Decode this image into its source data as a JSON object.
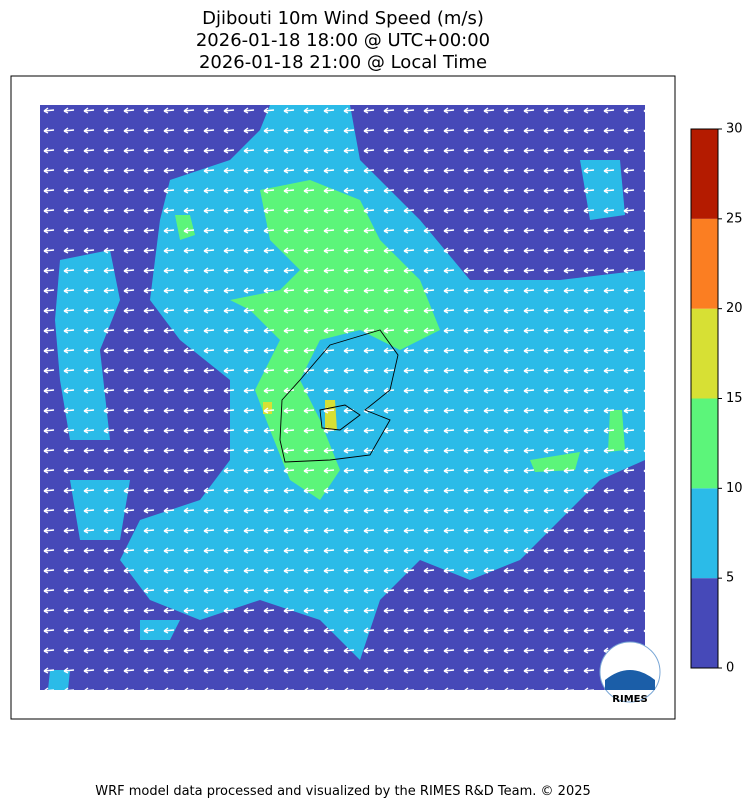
{
  "title": [
    "Djibouti 10m Wind Speed (m/s)",
    "2026-01-18 18:00 @ UTC+00:00",
    "2026-01-18 21:00 @ Local Time"
  ],
  "colorbar": {
    "lim": [
      0,
      30
    ],
    "ticks": [
      0,
      5,
      10,
      15,
      20,
      25,
      30
    ],
    "colors": [
      "#4649b8",
      "#2bbbe8",
      "#5cf57a",
      "#d7e034",
      "#fb7e22",
      "#b41b00"
    ]
  },
  "logo": "RIMES",
  "footer": "WRF model data processed and visualized by the RIMES R&D Team. © 2025"
}
